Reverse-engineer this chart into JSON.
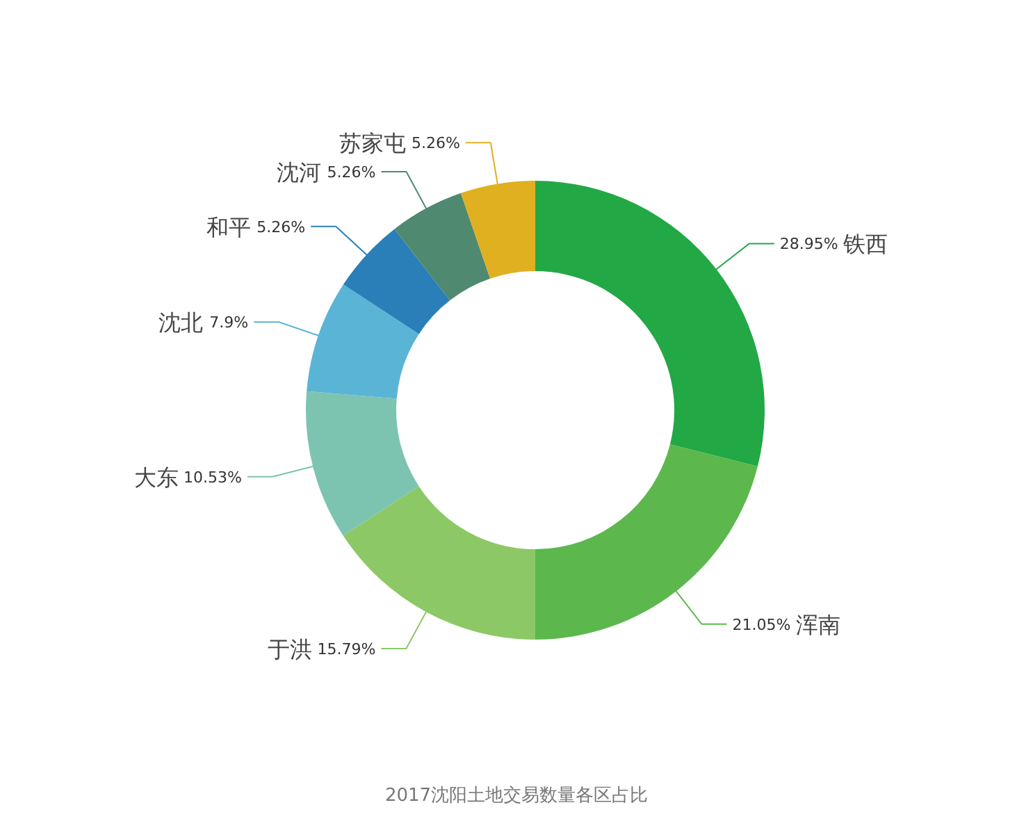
{
  "chart_data": {
    "type": "donut",
    "title": "2017沈阳土地交易数量各区占比",
    "categories": [
      "铁西",
      "浑南",
      "于洪",
      "大东",
      "沈北",
      "和平",
      "沈河",
      "苏家屯"
    ],
    "values": [
      28.95,
      21.05,
      15.79,
      10.53,
      7.9,
      5.26,
      5.26,
      5.26
    ],
    "value_labels": [
      "28.95%",
      "21.05%",
      "15.79%",
      "10.53%",
      "7.9%",
      "5.26%",
      "5.26%",
      "5.26%"
    ],
    "colors": [
      "#22a845",
      "#5cb84c",
      "#8cc866",
      "#7cc4b0",
      "#5ab4d6",
      "#2a7fb8",
      "#4f8a70",
      "#e0b020"
    ],
    "legend": false
  }
}
